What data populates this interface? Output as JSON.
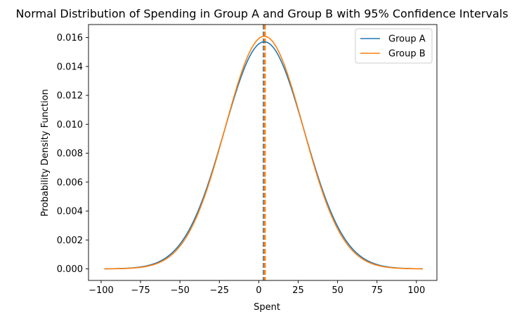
{
  "chart_data": {
    "type": "line",
    "title": "Normal Distribution of Spending in Group A and Group B with 95% Confidence Intervals",
    "xlabel": "Spent",
    "ylabel": "Probability Density Function",
    "xlim": [
      -108,
      113
    ],
    "ylim": [
      -0.0008,
      0.0169
    ],
    "xticks": [
      -100,
      -75,
      -50,
      -25,
      0,
      25,
      50,
      75,
      100
    ],
    "yticks": [
      0.0,
      0.002,
      0.004,
      0.006,
      0.008,
      0.01,
      0.012,
      0.014,
      0.016
    ],
    "xtick_labels": [
      "−100",
      "−75",
      "−50",
      "−25",
      "0",
      "25",
      "50",
      "75",
      "100"
    ],
    "ytick_labels": [
      "0.000",
      "0.002",
      "0.004",
      "0.006",
      "0.008",
      "0.010",
      "0.012",
      "0.014",
      "0.016"
    ],
    "grid": false,
    "legend_position": "top-right",
    "series": [
      {
        "name": "Group A",
        "color": "#1f77b4",
        "mean": 3.5,
        "std": 25.4,
        "x_range": [
          -98,
          104
        ]
      },
      {
        "name": "Group B",
        "color": "#ff7f0e",
        "mean": 3.5,
        "std": 24.8,
        "x_range": [
          -98,
          104
        ]
      }
    ],
    "vlines": [
      {
        "x": 3.0,
        "color": "#1f77b4",
        "style": "dashed"
      },
      {
        "x": 3.5,
        "color": "#ff7f0e",
        "style": "dashed"
      },
      {
        "x": 4.0,
        "color": "#ff7f0e",
        "style": "dashed"
      }
    ]
  }
}
